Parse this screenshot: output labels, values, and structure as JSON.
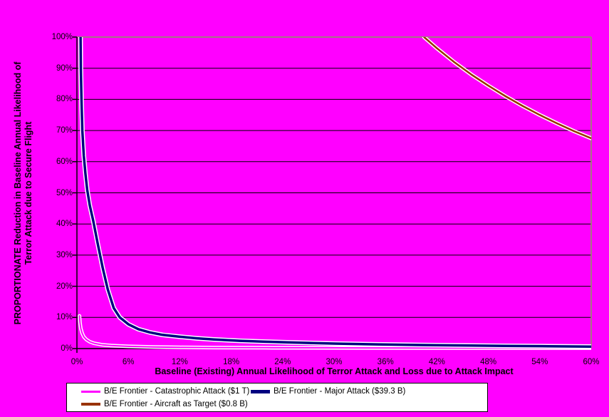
{
  "chart_data": {
    "type": "line",
    "title": "",
    "xlabel": "Baseline (Existing) Annual Likelihood of Terror Attack and Loss due to Attack Impact",
    "ylabel": [
      "PROPORTIONATE Reduction in Baseline Annual Likelihood of",
      "Terror Attack due to Secure Flight"
    ],
    "xlim": [
      0,
      60
    ],
    "ylim": [
      0,
      100
    ],
    "x_ticks": [
      {
        "value": 0,
        "label": "0%"
      },
      {
        "value": 6,
        "label": "6%"
      },
      {
        "value": 12,
        "label": "12%"
      },
      {
        "value": 18,
        "label": "18%"
      },
      {
        "value": 24,
        "label": "24%"
      },
      {
        "value": 30,
        "label": "30%"
      },
      {
        "value": 36,
        "label": "36%"
      },
      {
        "value": 42,
        "label": "42%"
      },
      {
        "value": 48,
        "label": "48%"
      },
      {
        "value": 54,
        "label": "54%"
      },
      {
        "value": 60,
        "label": "60%"
      }
    ],
    "y_ticks": [
      {
        "value": 0,
        "label": "0%"
      },
      {
        "value": 10,
        "label": "10%"
      },
      {
        "value": 20,
        "label": "20%"
      },
      {
        "value": 30,
        "label": "30%"
      },
      {
        "value": 40,
        "label": "40%"
      },
      {
        "value": 50,
        "label": "50%"
      },
      {
        "value": 60,
        "label": "60%"
      },
      {
        "value": 70,
        "label": "70%"
      },
      {
        "value": 80,
        "label": "80%"
      },
      {
        "value": 90,
        "label": "90%"
      },
      {
        "value": 100,
        "label": "100%"
      }
    ],
    "grid": "horizontal",
    "legend_position": "bottom",
    "colors": {
      "background": "#FF00FF",
      "gridline": "#000000",
      "axis": "#000000",
      "plot_border": "#879B5E",
      "legend_background": "#FFFFFF",
      "legend_border": "#000000",
      "text": "#000000"
    },
    "series": [
      {
        "name": "B/E Frontier - Catastrophic Attack ($1 T)",
        "color": "#FF00FF",
        "outline_color": "#FFFFFF",
        "line_width": 2,
        "outline_width": 5,
        "points": [
          [
            0.3,
            10.5
          ],
          [
            0.35,
            8.5
          ],
          [
            0.45,
            6.5
          ],
          [
            0.6,
            5.0
          ],
          [
            0.8,
            3.8
          ],
          [
            1.1,
            2.9
          ],
          [
            1.5,
            2.2
          ],
          [
            2.0,
            1.7
          ],
          [
            3.0,
            1.2
          ],
          [
            4.0,
            0.95
          ],
          [
            6.0,
            0.7
          ],
          [
            9.0,
            0.5
          ],
          [
            12,
            0.4
          ],
          [
            16,
            0.33
          ],
          [
            22,
            0.27
          ],
          [
            30,
            0.22
          ],
          [
            40,
            0.18
          ],
          [
            50,
            0.15
          ],
          [
            60,
            0.13
          ]
        ]
      },
      {
        "name": "B/E Frontier - Major Attack ($39.3 B)",
        "color": "#000080",
        "outline_color": "#FFFFFF",
        "line_width": 3.5,
        "outline_width": 6.5,
        "points": [
          [
            0.42,
            100
          ],
          [
            0.46,
            90
          ],
          [
            0.53,
            80
          ],
          [
            0.63,
            70
          ],
          [
            0.8,
            62
          ],
          [
            1.0,
            56
          ],
          [
            1.2,
            51
          ],
          [
            1.5,
            46
          ],
          [
            1.9,
            41
          ],
          [
            2.4,
            34
          ],
          [
            3.0,
            26
          ],
          [
            3.6,
            19
          ],
          [
            4.3,
            13
          ],
          [
            5.0,
            10
          ],
          [
            6.0,
            7.8
          ],
          [
            7.2,
            6.2
          ],
          [
            8.5,
            5.2
          ],
          [
            10,
            4.4
          ],
          [
            12,
            3.8
          ],
          [
            14,
            3.3
          ],
          [
            16,
            2.9
          ],
          [
            19,
            2.5
          ],
          [
            22,
            2.2
          ],
          [
            26,
            1.9
          ],
          [
            30,
            1.6
          ],
          [
            35,
            1.35
          ],
          [
            40,
            1.15
          ],
          [
            45,
            1.0
          ],
          [
            50,
            0.85
          ],
          [
            55,
            0.75
          ],
          [
            60,
            0.65
          ]
        ]
      },
      {
        "name": "B/E Frontier - Aircraft as Target ($0.8 B)",
        "color": "#993300",
        "outline_color": "#FFFFFF",
        "line_width": 2.5,
        "outline_width": 5.5,
        "points": [
          [
            40.5,
            100
          ],
          [
            42,
            96.4
          ],
          [
            44,
            92.0
          ],
          [
            46,
            88.0
          ],
          [
            48,
            84.4
          ],
          [
            50,
            81.0
          ],
          [
            52,
            77.9
          ],
          [
            54,
            75.0
          ],
          [
            56,
            72.3
          ],
          [
            58,
            69.8
          ],
          [
            60,
            67.5
          ]
        ]
      }
    ]
  }
}
